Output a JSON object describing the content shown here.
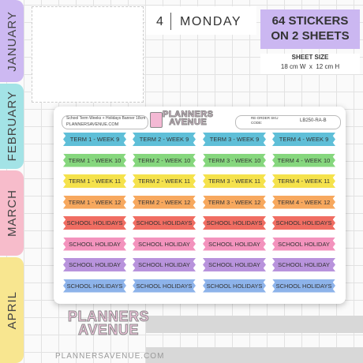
{
  "tabs": [
    "JANUARY",
    "FEBRUARY",
    "MARCH",
    "APRIL"
  ],
  "tab_colors": [
    "#cdb9f2",
    "#a3e3e6",
    "#f7bccb",
    "#f8e690"
  ],
  "planner": {
    "day_number": 4,
    "day_name": "MONDAY"
  },
  "badge": {
    "line1": "64 STICKERS",
    "line2": "ON 2 SHEETS"
  },
  "sheet_size": {
    "label": "SHEET SIZE",
    "value": "18 cm W  x  12 cm H"
  },
  "sheet": {
    "description": "School Term Weeks + Holidays Banner 18cm",
    "website": "PLANNERSAVENUE.COM",
    "logo": [
      "PLANNERS",
      "AVENUE"
    ],
    "reorder": "RE-ORDER SKU CODE:",
    "sku": "LB250-RA-B",
    "rows": [
      {
        "color": "#5fbfd8",
        "labels": [
          "TERM 1 - WEEK 9",
          "TERM 2 - WEEK 9",
          "TERM 3 - WEEK 9",
          "TERM 4 - WEEK 9"
        ]
      },
      {
        "color": "#86d77e",
        "labels": [
          "TERM 1 - WEEK 10",
          "TERM 2 - WEEK 10",
          "TERM 3 - WEEK 10",
          "TERM 4 - WEEK 10"
        ]
      },
      {
        "color": "#f5e24c",
        "labels": [
          "TERM 1 - WEEK 11",
          "TERM 2 - WEEK 11",
          "TERM 3 - WEEK 11",
          "TERM 4 - WEEK 11"
        ]
      },
      {
        "color": "#f7a85e",
        "labels": [
          "TERM 1 - WEEK 12",
          "TERM 2 - WEEK 12",
          "TERM 3 - WEEK 12",
          "TERM 4 - WEEK 12"
        ]
      },
      {
        "color": "#f06d62",
        "labels": [
          "SCHOOL HOLIDAYS",
          "SCHOOL HOLIDAYS",
          "SCHOOL HOLIDAYS",
          "SCHOOL HOLIDAYS"
        ]
      },
      {
        "color": "#f393bd",
        "labels": [
          "SCHOOL HOLIDAY",
          "SCHOOL HOLIDAY",
          "SCHOOL HOLIDAY",
          "SCHOOL HOLIDAY"
        ]
      },
      {
        "color": "#b893dc",
        "labels": [
          "SCHOOL HOLIDAY",
          "SCHOOL HOLIDAY",
          "SCHOOL HOLIDAY",
          "SCHOOL HOLIDAY"
        ]
      },
      {
        "color": "#8db3ea",
        "labels": [
          "SCHOOL HOLIDAYS",
          "SCHOOL HOLIDAYS",
          "SCHOOL HOLIDAYS",
          "SCHOOL HOLIDAYS"
        ]
      }
    ]
  },
  "footer": {
    "logo": [
      "PLANNERS",
      "AVENUE"
    ],
    "website": "PLANNERSAVENUE.COM"
  }
}
